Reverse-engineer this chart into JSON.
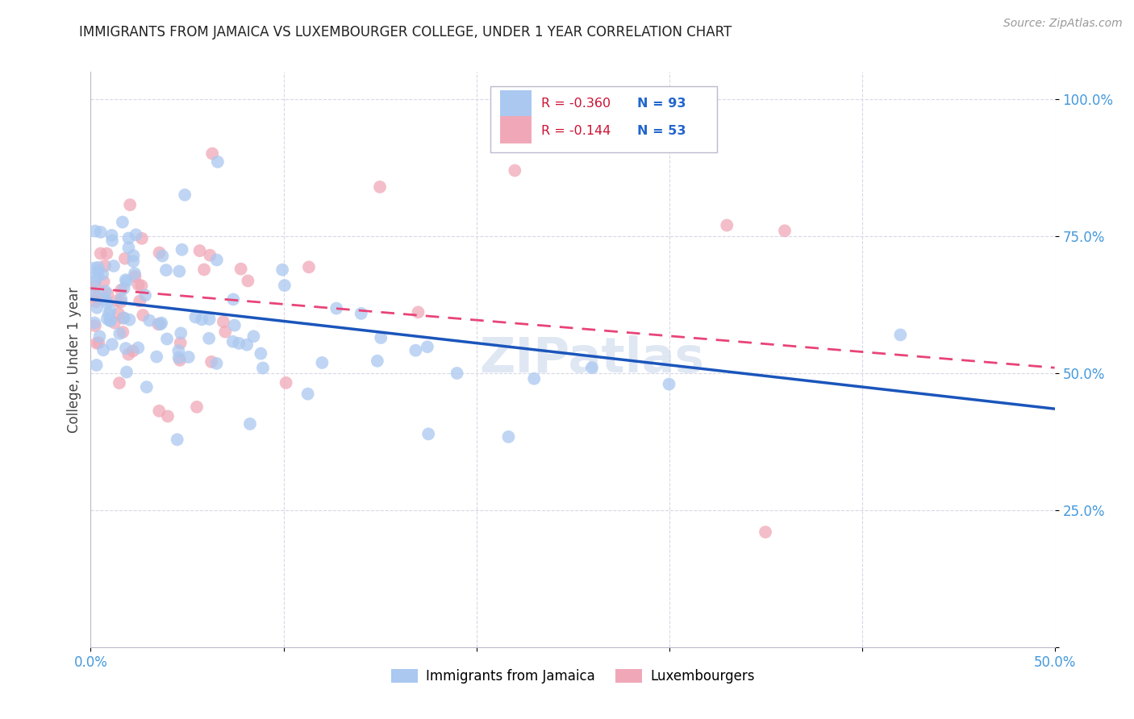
{
  "title": "IMMIGRANTS FROM JAMAICA VS LUXEMBOURGER COLLEGE, UNDER 1 YEAR CORRELATION CHART",
  "source": "Source: ZipAtlas.com",
  "ylabel": "College, Under 1 year",
  "xlim": [
    0,
    0.5
  ],
  "ylim": [
    0,
    1.05
  ],
  "xticks": [
    0.0,
    0.1,
    0.2,
    0.3,
    0.4,
    0.5
  ],
  "xticklabels": [
    "0.0%",
    "",
    "",
    "",
    "",
    "50.0%"
  ],
  "yticks": [
    0.0,
    0.25,
    0.5,
    0.75,
    1.0
  ],
  "yticklabels": [
    "",
    "25.0%",
    "50.0%",
    "75.0%",
    "100.0%"
  ],
  "background_color": "#ffffff",
  "grid_color": "#d8d8e8",
  "title_color": "#222222",
  "axis_color": "#4499dd",
  "series1_color": "#aac8f0",
  "series2_color": "#f0a8b8",
  "trendline1_color": "#1a55bb",
  "trendline2_color": "#e84478",
  "legend_r1": "R = -0.360",
  "legend_n1": "N = 93",
  "legend_r2": "R = -0.144",
  "legend_n2": "N = 53",
  "watermark": "ZIPatlas",
  "series1_label": "Immigrants from Jamaica",
  "series2_label": "Luxembourgers",
  "trendline1_x0": 0.0,
  "trendline1_y0": 0.635,
  "trendline1_x1": 0.5,
  "trendline1_y1": 0.435,
  "trendline2_x0": 0.0,
  "trendline2_y0": 0.655,
  "trendline2_x1": 0.5,
  "trendline2_y1": 0.51
}
